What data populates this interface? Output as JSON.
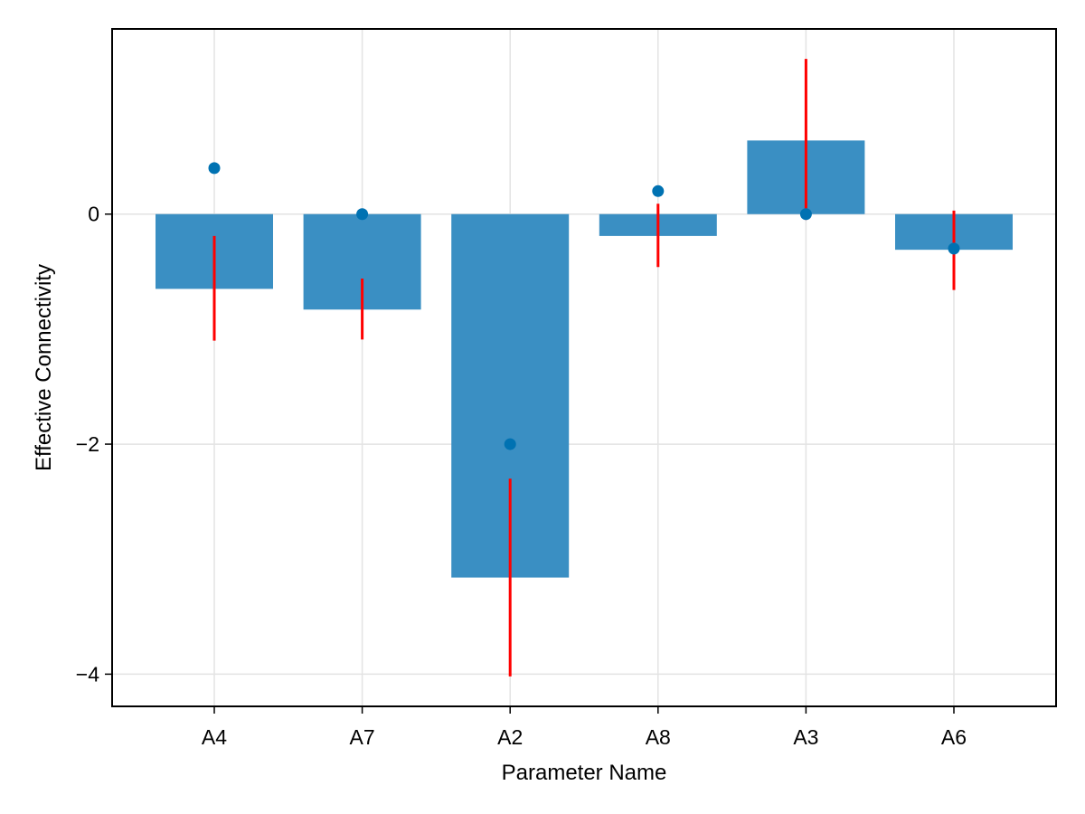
{
  "chart_data": {
    "type": "bar",
    "title": "",
    "xlabel": "Parameter Name",
    "ylabel": "Effective Connectivity",
    "categories": [
      "A4",
      "A7",
      "A2",
      "A8",
      "A3",
      "A6"
    ],
    "series": [
      {
        "kind": "bar",
        "values": [
          -0.65,
          -0.83,
          -3.16,
          -0.19,
          0.64,
          -0.31
        ],
        "color": "#3a8fc3"
      },
      {
        "kind": "error_bar",
        "low": [
          -1.1,
          -1.09,
          -4.02,
          -0.46,
          -0.05,
          -0.66
        ],
        "high": [
          -0.19,
          -0.56,
          -2.3,
          0.09,
          1.35,
          0.03
        ],
        "color": "#ff0000"
      },
      {
        "kind": "scatter",
        "values": [
          0.4,
          0.0,
          -2.0,
          0.2,
          0.0,
          -0.3
        ],
        "color": "#0072b2"
      }
    ],
    "ylim": [
      -4.28,
      1.61
    ],
    "y_ticks": [
      {
        "value": 0,
        "label": "0"
      },
      {
        "value": -2,
        "label": "−2"
      },
      {
        "value": -4,
        "label": "−4"
      }
    ],
    "grid": true,
    "legend": "none"
  }
}
